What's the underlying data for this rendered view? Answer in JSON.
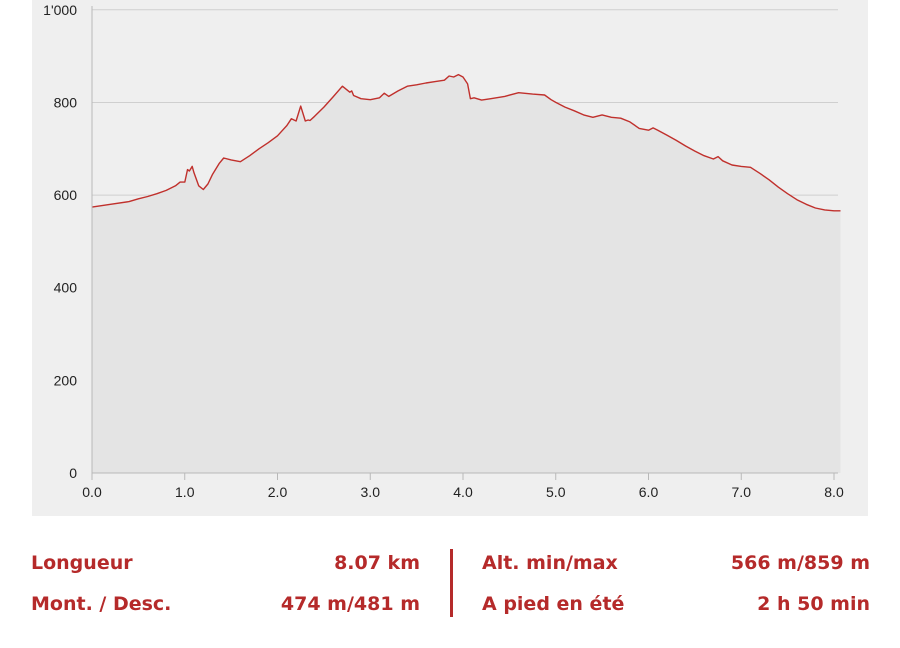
{
  "chart_data": {
    "type": "area",
    "title": "",
    "xlabel": "",
    "ylabel": "",
    "xlim": [
      0,
      8.07
    ],
    "ylim": [
      0,
      1000
    ],
    "x_ticks": [
      {
        "value": 0,
        "label": "0.0"
      },
      {
        "value": 1,
        "label": "1.0"
      },
      {
        "value": 2,
        "label": "2.0"
      },
      {
        "value": 3,
        "label": "3.0"
      },
      {
        "value": 4,
        "label": "4.0"
      },
      {
        "value": 5,
        "label": "5.0"
      },
      {
        "value": 6,
        "label": "6.0"
      },
      {
        "value": 7,
        "label": "7.0"
      },
      {
        "value": 8,
        "label": "8.0"
      }
    ],
    "y_ticks": [
      {
        "value": 0,
        "label": "0"
      },
      {
        "value": 200,
        "label": "200"
      },
      {
        "value": 400,
        "label": "400"
      },
      {
        "value": 600,
        "label": "600"
      },
      {
        "value": 800,
        "label": "800"
      },
      {
        "value": 1000,
        "label": "1'000"
      }
    ],
    "grid": "horizontal",
    "line_color": "#c0302c",
    "fill_color": "#e4e4e4",
    "background_color": "#efefef",
    "series": [
      {
        "x": [
          0,
          0.2,
          0.4,
          0.5,
          0.6,
          0.7,
          0.8,
          0.9,
          0.95,
          1.0,
          1.03,
          1.05,
          1.08,
          1.1,
          1.15,
          1.2,
          1.25,
          1.3,
          1.37,
          1.42,
          1.5,
          1.6,
          1.7,
          1.8,
          1.9,
          2.0,
          2.1,
          2.15,
          2.2,
          2.25,
          2.3,
          2.33,
          2.35,
          2.4,
          2.5,
          2.6,
          2.7,
          2.78,
          2.8,
          2.82,
          2.9,
          3.0,
          3.1,
          3.15,
          3.2,
          3.3,
          3.4,
          3.5,
          3.6,
          3.7,
          3.8,
          3.85,
          3.9,
          3.95,
          4.0,
          4.05,
          4.08,
          4.12,
          4.2,
          4.3,
          4.45,
          4.6,
          4.75,
          4.88,
          4.95,
          5.0,
          5.1,
          5.2,
          5.3,
          5.4,
          5.5,
          5.6,
          5.7,
          5.8,
          5.9,
          6.0,
          6.05,
          6.1,
          6.2,
          6.3,
          6.4,
          6.5,
          6.6,
          6.7,
          6.75,
          6.8,
          6.9,
          7.0,
          7.1,
          7.2,
          7.3,
          7.4,
          7.5,
          7.6,
          7.7,
          7.8,
          7.9,
          8.0,
          8.07
        ],
        "y": [
          574,
          580,
          586,
          592,
          597,
          603,
          610,
          620,
          628,
          628,
          655,
          652,
          662,
          648,
          620,
          612,
          624,
          645,
          668,
          680,
          676,
          672,
          685,
          700,
          713,
          728,
          750,
          765,
          760,
          792,
          760,
          762,
          761,
          770,
          790,
          812,
          835,
          822,
          825,
          815,
          808,
          806,
          810,
          820,
          813,
          825,
          835,
          838,
          842,
          845,
          848,
          857,
          855,
          860,
          855,
          840,
          808,
          810,
          805,
          808,
          813,
          821,
          818,
          816,
          806,
          800,
          790,
          782,
          773,
          768,
          773,
          768,
          766,
          758,
          744,
          740,
          745,
          740,
          729,
          718,
          706,
          695,
          685,
          678,
          683,
          674,
          665,
          662,
          660,
          647,
          633,
          617,
          603,
          590,
          580,
          572,
          568,
          566,
          566
        ]
      }
    ]
  },
  "stats": {
    "length_label": "Longueur",
    "length_value": "8.07 km",
    "ascent_label": "Mont. / Desc.",
    "ascent_value": "474 m/481 m",
    "altitude_label": "Alt. min/max",
    "altitude_value": "566 m/859 m",
    "time_label": "A pied en été",
    "time_value": "2 h 50 min"
  }
}
